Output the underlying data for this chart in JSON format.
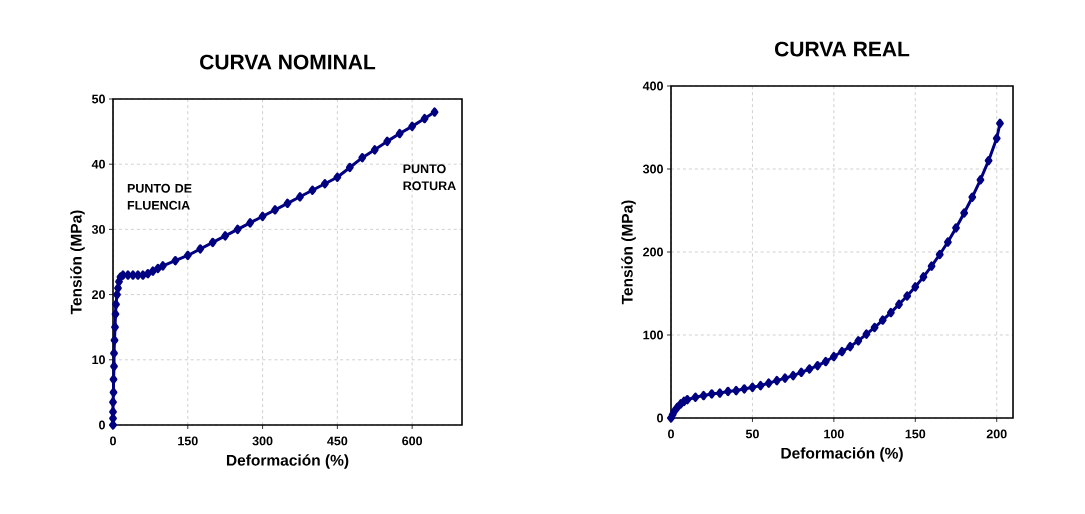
{
  "chart_data": [
    {
      "type": "line",
      "title": "CURVA NOMINAL",
      "xlabel": "Deformación (%)",
      "ylabel": "Tensión (MPa)",
      "series": [
        {
          "color": "#000080",
          "x": [
            0,
            0,
            0,
            0,
            1,
            1,
            2,
            2,
            3,
            4,
            5,
            6,
            8,
            10,
            12,
            15,
            20,
            30,
            40,
            50,
            60,
            70,
            80,
            90,
            100,
            125,
            150,
            175,
            200,
            225,
            250,
            275,
            300,
            325,
            350,
            375,
            400,
            425,
            450,
            475,
            500,
            525,
            550,
            575,
            600,
            625,
            645
          ],
          "values": [
            0,
            1,
            2,
            3.5,
            5,
            7,
            9,
            11,
            13,
            15,
            17,
            18.5,
            20,
            21,
            22,
            22.7,
            23,
            23,
            23,
            23,
            23,
            23.2,
            23.6,
            24,
            24.4,
            25.2,
            26,
            27,
            28,
            29,
            30,
            31,
            32,
            33,
            34,
            35,
            36,
            37,
            38,
            39.5,
            41,
            42.2,
            43.5,
            44.7,
            45.8,
            47,
            48
          ]
        }
      ],
      "marker": "diamond",
      "grid": true,
      "xlim": [
        0,
        700
      ],
      "xticks": [
        0,
        150,
        300,
        450,
        600
      ],
      "ylim": [
        0,
        50
      ],
      "yticks": [
        0,
        10,
        20,
        30,
        40,
        50
      ],
      "annotations": [
        "PUNTO DE FLUENCIA",
        "PUNTO ROTURA"
      ]
    },
    {
      "type": "line",
      "title": "CURVA REAL",
      "xlabel": "Deformación (%)",
      "ylabel": "Tensión (MPa)",
      "series": [
        {
          "color": "#000080",
          "x": [
            0,
            1,
            2,
            4,
            6,
            8,
            10,
            15,
            20,
            25,
            30,
            35,
            40,
            45,
            50,
            55,
            60,
            65,
            70,
            75,
            80,
            85,
            90,
            95,
            100,
            105,
            110,
            115,
            120,
            125,
            130,
            135,
            140,
            145,
            150,
            155,
            160,
            165,
            170,
            175,
            180,
            185,
            190,
            195,
            200,
            202
          ],
          "values": [
            0,
            4,
            8,
            13,
            17,
            20,
            22,
            25,
            27,
            29,
            30,
            32,
            33,
            35,
            37,
            39,
            42,
            45,
            48,
            51,
            55,
            59,
            63,
            68,
            74,
            80,
            86,
            93,
            101,
            109,
            118,
            127,
            137,
            147,
            158,
            170,
            183,
            197,
            212,
            229,
            247,
            266,
            287,
            310,
            337,
            355
          ]
        }
      ],
      "marker": "diamond",
      "grid": true,
      "xlim": [
        0,
        210
      ],
      "xticks": [
        0,
        50,
        100,
        150,
        200
      ],
      "ylim": [
        0,
        400
      ],
      "yticks": [
        0,
        100,
        200,
        300,
        400
      ]
    }
  ]
}
